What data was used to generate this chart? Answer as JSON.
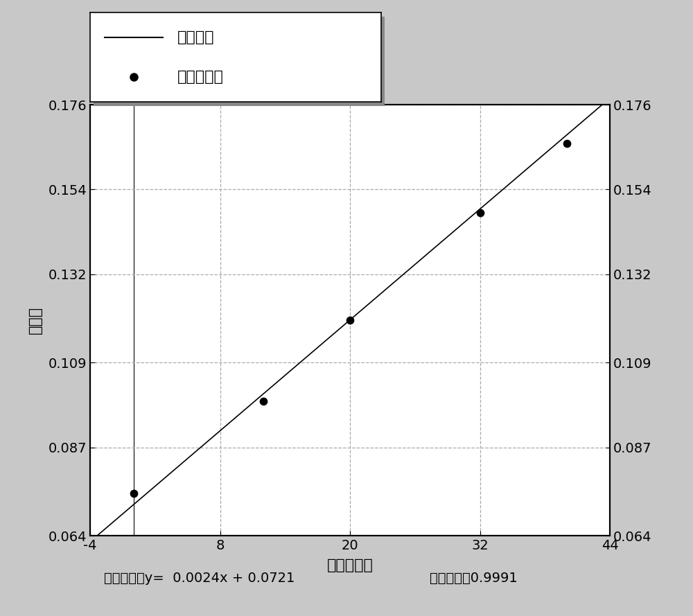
{
  "xlabel": "样品浓度值",
  "ylabel": "吸光度",
  "equation_text": "曲线方程：y=  0.0024x + 0.0721",
  "r_text": "相关系数：0.9991",
  "slope": 0.0024,
  "intercept": 0.0721,
  "fit_points_x": [
    0,
    12,
    20,
    32,
    40
  ],
  "xlim": [
    -4,
    44
  ],
  "ylim": [
    0.064,
    0.176
  ],
  "xticks": [
    -4,
    8,
    20,
    32,
    44
  ],
  "yticks": [
    0.064,
    0.087,
    0.109,
    0.132,
    0.154,
    0.176
  ],
  "line_color": "#000000",
  "point_color": "#000000",
  "grid_color": "#aaaaaa",
  "background_color": "#ffffff",
  "fig_background": "#c8c8c8",
  "legend_line_label": "标准曲线",
  "legend_point_label": "曲线拟合点",
  "fig_width": 10.0,
  "fig_height": 8.89
}
